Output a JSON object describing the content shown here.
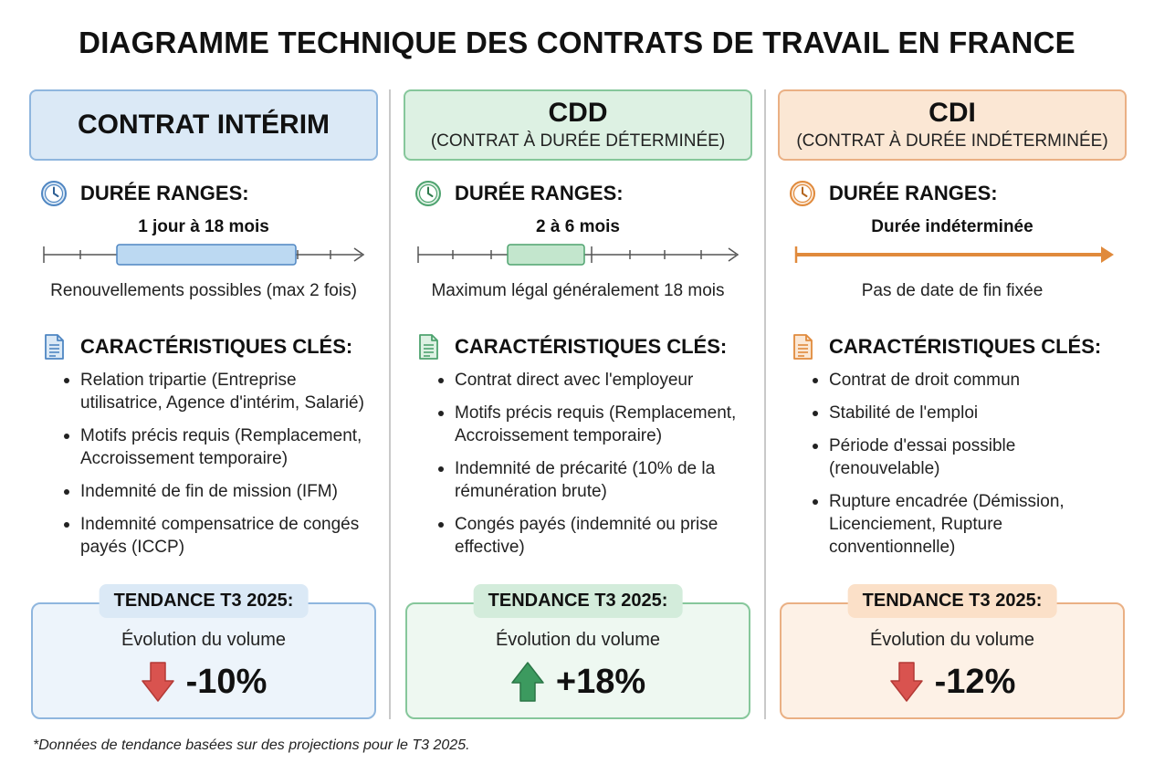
{
  "title": "DIAGRAMME TECHNIQUE DES CONTRATS DE TRAVAIL EN FRANCE",
  "section_labels": {
    "duration": "DURÉE RANGES:",
    "features": "CARACTÉRISTIQUES CLÉS:",
    "trend": "TENDANCE T3 2025:",
    "trend_subtitle": "Évolution du volume"
  },
  "contracts": [
    {
      "name": "CONTRAT INTÉRIM",
      "subtitle": "",
      "range_label": "1 jour à 18 mois",
      "range_note": "Renouvellements possibles (max 2 fois)",
      "features": [
        "Relation tripartie (Entreprise utilisatrice, Agence d'intérim, Salarié)",
        "Motifs précis requis (Remplacement, Accroissement temporaire)",
        "Indemnité de fin de mission (IFM)",
        "Indemnité compensatrice de congés payés (ICCP)"
      ],
      "trend_value": "-10%",
      "trend_direction": "down",
      "colors": {
        "accent": "#5b8fc7",
        "fill": "#dbe9f6",
        "bar": "#bcd9f2",
        "bar_border": "#4f86c2",
        "arrow": "#d9534f"
      }
    },
    {
      "name": "CDD",
      "subtitle": "(CONTRAT À DURÉE DÉTERMINÉE)",
      "range_label": "2 à 6 mois",
      "range_note": "Maximum légal généralement 18 mois",
      "features": [
        "Contrat direct avec l'employeur",
        "Motifs précis requis (Remplacement, Accroissement temporaire)",
        "Indemnité de précarité (10% de la rémunération brute)",
        "Congés payés (indemnité ou prise effective)"
      ],
      "trend_value": "+18%",
      "trend_direction": "up",
      "colors": {
        "accent": "#5cb07e",
        "fill": "#ddf1e3",
        "bar": "#c3e6cd",
        "bar_border": "#4ea36f",
        "arrow": "#3c9a5f"
      }
    },
    {
      "name": "CDI",
      "subtitle": "(CONTRAT À DURÉE INDÉTERMINÉE)",
      "range_label": "Durée indéterminée",
      "range_note": "Pas de date de fin fixée",
      "features": [
        "Contrat de droit commun",
        "Stabilité de l'emploi",
        "Période d'essai possible (renouvelable)",
        "Rupture encadrée (Démission, Licenciement, Rupture conventionnelle)"
      ],
      "trend_value": "-12%",
      "trend_direction": "down",
      "colors": {
        "accent": "#e8a36a",
        "fill": "#fbe7d4",
        "bar": "#f6d2b0",
        "bar_border": "#e08a3c",
        "arrow": "#d9534f"
      }
    }
  ],
  "footnote": "*Données de tendance basées sur des projections pour le T3 2025."
}
